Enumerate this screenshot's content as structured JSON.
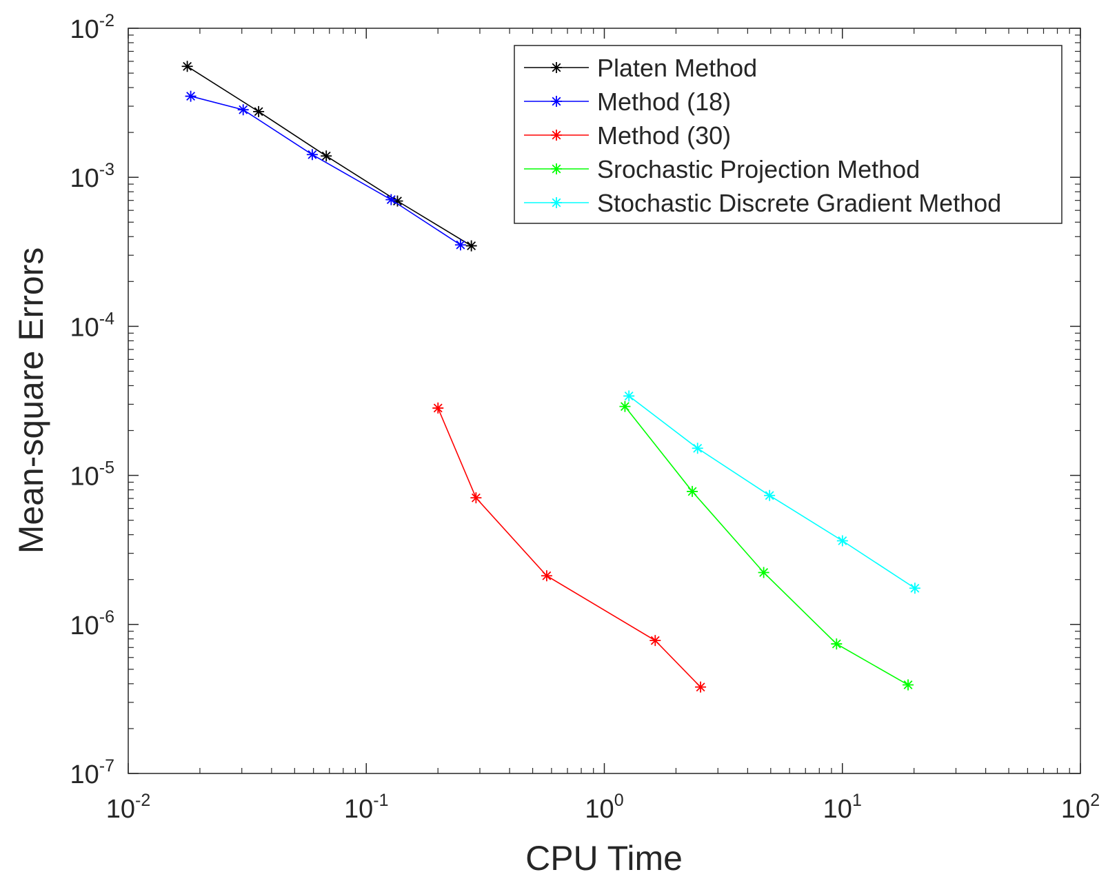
{
  "chart_data": {
    "type": "line",
    "xscale": "log",
    "yscale": "log",
    "xlabel": "CPU Time",
    "ylabel": "Mean-square Errors",
    "xlim": [
      0.01,
      100
    ],
    "ylim": [
      1e-07,
      0.01
    ],
    "grid": false,
    "legend_position": "top-right",
    "x_ticks": [
      {
        "value": 0.01,
        "base": "10",
        "exp": "-2"
      },
      {
        "value": 0.1,
        "base": "10",
        "exp": "-1"
      },
      {
        "value": 1,
        "base": "10",
        "exp": "0"
      },
      {
        "value": 10,
        "base": "10",
        "exp": "1"
      },
      {
        "value": 100,
        "base": "10",
        "exp": "2"
      }
    ],
    "y_ticks": [
      {
        "value": 1e-07,
        "base": "10",
        "exp": "-7"
      },
      {
        "value": 1e-06,
        "base": "10",
        "exp": "-6"
      },
      {
        "value": 1e-05,
        "base": "10",
        "exp": "-5"
      },
      {
        "value": 0.0001,
        "base": "10",
        "exp": "-4"
      },
      {
        "value": 0.001,
        "base": "10",
        "exp": "-3"
      },
      {
        "value": 0.01,
        "base": "10",
        "exp": "-2"
      }
    ],
    "series": [
      {
        "name": "Platen Method",
        "color": "#000000",
        "x": [
          0.0177,
          0.0353,
          0.0679,
          0.1352,
          0.2763
        ],
        "y": [
          0.00555,
          0.00276,
          0.00139,
          0.000693,
          0.000347
        ]
      },
      {
        "name": "Method (18)",
        "color": "#0000ff",
        "x": [
          0.0183,
          0.0304,
          0.0593,
          0.1272,
          0.2488
        ],
        "y": [
          0.0035,
          0.00284,
          0.00142,
          0.000708,
          0.000352
        ]
      },
      {
        "name": "Method (30)",
        "color": "#ff0000",
        "x": [
          0.2001,
          0.289,
          0.5726,
          1.6358,
          2.5367
        ],
        "y": [
          2.83e-05,
          7.07e-06,
          2.12e-06,
          7.8e-07,
          3.8e-07
        ]
      },
      {
        "name": "Srochastic Projection Method",
        "color": "#00ff00",
        "x": [
          1.2208,
          2.3408,
          4.6714,
          9.4512,
          18.879
        ],
        "y": [
          2.9e-05,
          7.8e-06,
          2.23e-06,
          7.4e-07,
          3.93e-07
        ]
      },
      {
        "name": "Stochastic Discrete Gradient Method",
        "color": "#00ffff",
        "x": [
          1.2686,
          2.4641,
          4.9443,
          10.006,
          20.167
        ],
        "y": [
          3.41e-05,
          1.52e-05,
          7.33e-06,
          3.64e-06,
          1.75e-06
        ]
      }
    ]
  }
}
